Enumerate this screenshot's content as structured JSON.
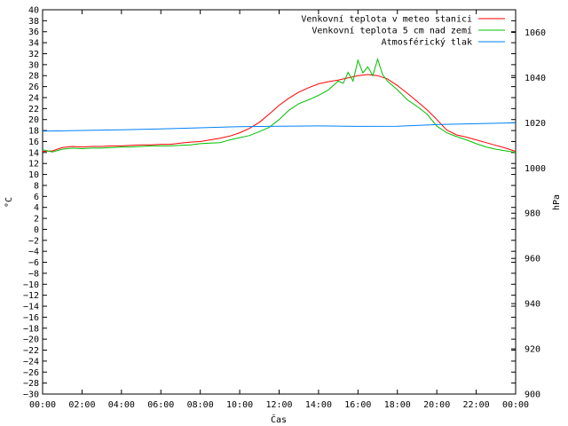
{
  "chart_data": {
    "type": "line",
    "title": "",
    "xlabel": "Čas",
    "ylabel": "°C",
    "y2label": "hPa",
    "xticks": [
      "00:00",
      "02:00",
      "04:00",
      "06:00",
      "08:00",
      "10:00",
      "12:00",
      "14:00",
      "16:00",
      "18:00",
      "20:00",
      "22:00",
      "00:00"
    ],
    "x_range_hours": [
      0,
      24
    ],
    "ylim": [
      -30,
      40
    ],
    "ytick_step": 2,
    "y2lim": [
      900,
      1070
    ],
    "y2ticks": [
      900,
      920,
      940,
      960,
      980,
      1000,
      1020,
      1040,
      1060
    ],
    "grid": false,
    "legend_position": "top-right",
    "series": [
      {
        "name": "Venkovní teplota v meteo stanici",
        "axis": "left",
        "color": "#ff0000",
        "x": [
          0,
          0.5,
          1,
          1.5,
          2,
          2.5,
          3,
          3.5,
          4,
          4.5,
          5,
          5.5,
          6,
          6.5,
          7,
          7.5,
          8,
          8.5,
          9,
          9.5,
          10,
          10.5,
          11,
          11.5,
          12,
          12.5,
          13,
          13.5,
          14,
          14.5,
          15,
          15.5,
          16,
          16.5,
          17,
          17.5,
          18,
          18.5,
          19,
          19.5,
          20,
          20.5,
          21,
          21.5,
          22,
          22.5,
          23,
          23.5,
          24
        ],
        "values": [
          14.2,
          14.3,
          14.9,
          15.1,
          15.0,
          15.1,
          15.1,
          15.2,
          15.2,
          15.3,
          15.4,
          15.4,
          15.5,
          15.5,
          15.7,
          15.9,
          16.0,
          16.3,
          16.6,
          17.0,
          17.6,
          18.4,
          19.5,
          21.0,
          22.6,
          23.9,
          25.0,
          25.8,
          26.5,
          26.9,
          27.2,
          27.6,
          28.0,
          28.2,
          28.0,
          27.4,
          26.2,
          24.8,
          23.3,
          21.8,
          20.0,
          18.1,
          17.2,
          16.8,
          16.3,
          15.8,
          15.3,
          14.8,
          14.2
        ]
      },
      {
        "name": "Venkovní teplota 5 cm nad zemí",
        "axis": "left",
        "color": "#00c000",
        "x": [
          0,
          0.5,
          1,
          1.5,
          2,
          2.5,
          3,
          3.5,
          4,
          4.5,
          5,
          5.5,
          6,
          6.5,
          7,
          7.5,
          8,
          8.5,
          9,
          9.5,
          10,
          10.5,
          11,
          11.5,
          12,
          12.5,
          13,
          13.5,
          14,
          14.5,
          15,
          15.25,
          15.5,
          15.75,
          16,
          16.25,
          16.5,
          16.75,
          17,
          17.25,
          17.5,
          18,
          18.5,
          19,
          19.5,
          20,
          20.5,
          21,
          21.5,
          22,
          22.5,
          23,
          23.5,
          24
        ],
        "values": [
          14.5,
          14.1,
          14.6,
          14.8,
          14.7,
          14.8,
          14.8,
          14.9,
          15.0,
          15.0,
          15.1,
          15.2,
          15.2,
          15.2,
          15.3,
          15.4,
          15.6,
          15.7,
          15.8,
          16.3,
          16.7,
          17.1,
          17.8,
          18.6,
          20.0,
          21.7,
          22.9,
          23.6,
          24.4,
          25.4,
          27.0,
          26.6,
          28.6,
          27.0,
          30.8,
          28.5,
          29.6,
          28.0,
          31.0,
          28.2,
          27.0,
          25.4,
          23.6,
          22.4,
          21.0,
          18.8,
          17.6,
          16.9,
          16.3,
          15.6,
          15.0,
          14.6,
          14.3,
          14.0
        ]
      },
      {
        "name": "Atmosférický tlak",
        "axis": "right",
        "color": "#0080ff",
        "x": [
          0,
          2,
          4,
          6,
          8,
          10,
          12,
          14,
          16,
          18,
          20,
          22,
          24
        ],
        "values": [
          1016.3,
          1016.6,
          1016.9,
          1017.3,
          1017.8,
          1018.3,
          1018.5,
          1018.6,
          1018.4,
          1018.5,
          1019.2,
          1019.6,
          1020.0
        ]
      }
    ]
  }
}
